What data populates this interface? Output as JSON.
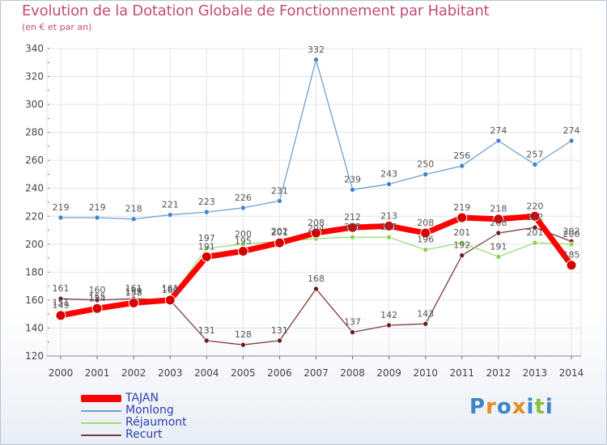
{
  "chart_data": {
    "type": "line",
    "title": "Evolution de la Dotation Globale de Fonctionnement par Habitant",
    "subtitle": "(en € et par an)",
    "x": [
      2000,
      2001,
      2002,
      2003,
      2004,
      2005,
      2006,
      2007,
      2008,
      2009,
      2010,
      2011,
      2012,
      2013,
      2014
    ],
    "ylim": [
      120,
      340
    ],
    "yticks": [
      120,
      140,
      160,
      180,
      200,
      220,
      240,
      260,
      280,
      300,
      320,
      340
    ],
    "grid": true,
    "legend_position": "bottom-left",
    "series": [
      {
        "name": "TAJAN",
        "color": "#ff0000",
        "marker": "#d40000",
        "values": [
          149,
          154,
          158,
          160,
          191,
          195,
          201,
          208,
          212,
          213,
          208,
          219,
          218,
          220,
          185
        ],
        "labels": [
          "149",
          "154",
          "158",
          "160",
          "191",
          "195",
          "201",
          "208",
          "212",
          "213",
          "208",
          "219",
          "218",
          "220",
          "185"
        ]
      },
      {
        "name": "Monlong",
        "color": "#6f9fcf",
        "marker": "#3f86c9",
        "values": [
          219,
          219,
          218,
          221,
          223,
          226,
          231,
          332,
          239,
          243,
          250,
          256,
          274,
          257,
          274
        ],
        "labels": [
          "219",
          "219",
          "218",
          "221",
          "223",
          "226",
          "231",
          "332",
          "239",
          "243",
          "250",
          "256",
          "274",
          "257",
          "274"
        ]
      },
      {
        "name": "Réjaumont",
        "color": "#9edc73",
        "marker": "#8bd44f",
        "values": [
          151,
          155,
          159,
          161,
          197,
          200,
          202,
          204,
          205,
          205,
          196,
          201,
          191,
          201,
          200
        ],
        "labels": [
          "151",
          "155",
          "159",
          "161",
          "197",
          "200",
          "202",
          "204",
          "205",
          "205",
          "196",
          "201",
          "191",
          "201",
          "200"
        ]
      },
      {
        "name": "Recurt",
        "color": "#7e3b3b",
        "marker": "#6b1e1e",
        "values": [
          161,
          160,
          161,
          160,
          131,
          128,
          131,
          168,
          137,
          142,
          143,
          192,
          208,
          212,
          202
        ],
        "labels": [
          "161",
          "160",
          "161",
          "160",
          "131",
          "128",
          "131",
          "168",
          "137",
          "142",
          "143",
          "192",
          "208",
          "212",
          "202"
        ]
      }
    ]
  },
  "legend": {
    "items": [
      {
        "label": "TAJAN",
        "color": "#ff0000"
      },
      {
        "label": "Monlong",
        "color": "#6f9fcf"
      },
      {
        "label": "Réjaumont",
        "color": "#9edc73"
      },
      {
        "label": "Recurt",
        "color": "#7e3b3b"
      }
    ]
  },
  "logo": {
    "letters": [
      "P",
      "r",
      "o",
      "x",
      "i",
      "t",
      "i"
    ],
    "colors": [
      "#3d86c6",
      "#e98a1f",
      "#3d86c6",
      "#e98a1f",
      "#3d86c6",
      "#8bbf3c",
      "#3d86c6"
    ]
  }
}
